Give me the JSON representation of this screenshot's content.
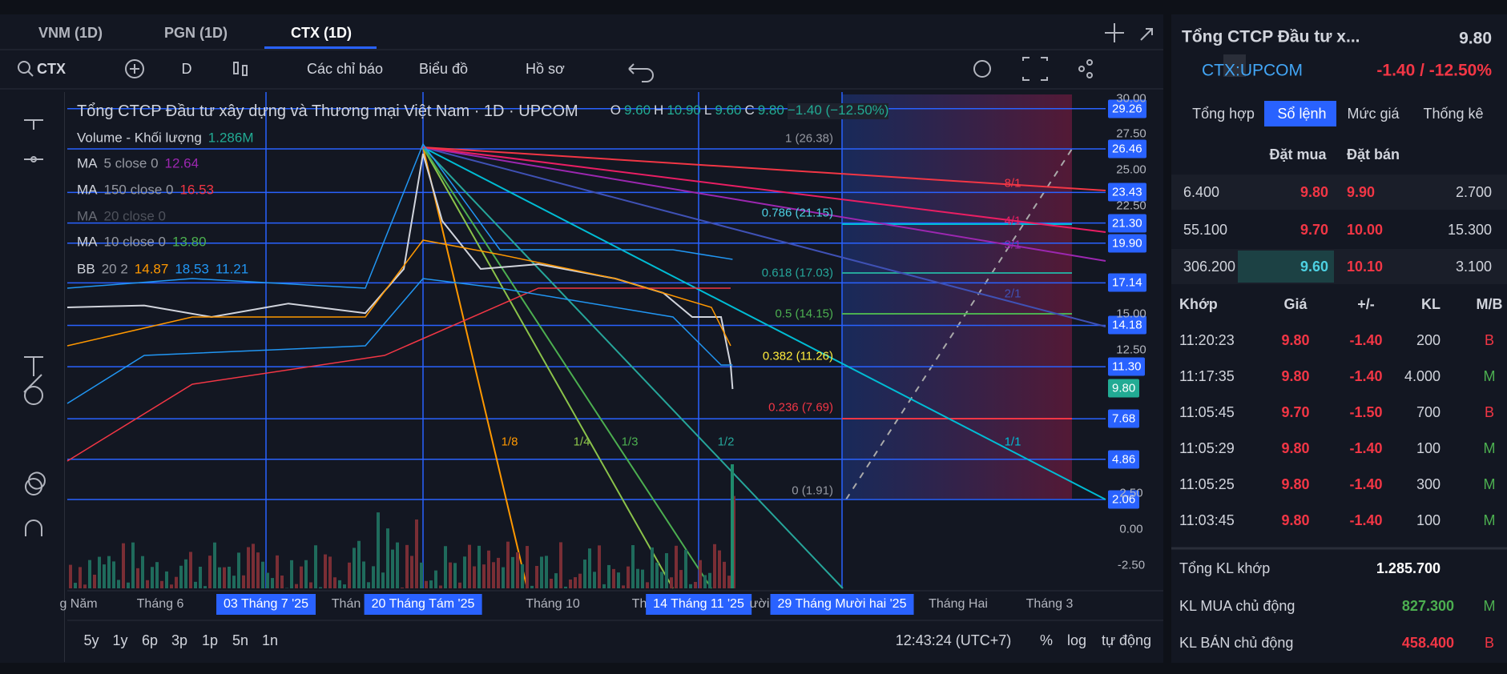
{
  "tabs": [
    "VNM (1D)",
    "PGN (1D)",
    "CTX (1D)"
  ],
  "toolbar": {
    "symbol": "CTX",
    "interval": "D",
    "indicators": "Các chỉ báo",
    "chart_menu": "Biểu đồ",
    "profile": "Hồ sơ"
  },
  "chart": {
    "title": "Tổng CTCP Đầu tư xây dựng và Thương mại Việt Nam · 1D · UPCOM",
    "ohlc": [
      {
        "label": "O",
        "value": "9.60"
      },
      {
        "label": "H",
        "value": "10.90"
      },
      {
        "label": "L",
        "value": "9.60"
      },
      {
        "label": "C",
        "value": "9.80"
      }
    ],
    "change": "−1.40 (−12.50%)",
    "legend": [
      {
        "name": "Volume - Khối lượng",
        "params": "",
        "values": [
          "1.286M"
        ]
      },
      {
        "name": "MA",
        "params": "5 close 0",
        "values": [
          "12.64"
        ]
      },
      {
        "name": "MA",
        "params": "150 close 0",
        "values": [
          "16.53"
        ]
      },
      {
        "name": "MA",
        "params": "20 close 0",
        "values": []
      },
      {
        "name": "MA",
        "params": "10 close 0",
        "values": [
          "13.80"
        ]
      },
      {
        "name": "BB",
        "params": "20 2",
        "values": [
          "14.87",
          "18.53",
          "11.21"
        ]
      }
    ],
    "fib_labels": [
      "1 (26.38)",
      "0.786 (21.15)",
      "0.618 (17.03)",
      "0.5 (14.15)",
      "0.382 (11.26)",
      "0.236 (7.69)",
      "0 (1.91)"
    ],
    "fan_labels": [
      "1/8",
      "1/4",
      "1/3",
      "1/2",
      "1/1",
      "2/1",
      "3/1",
      "4/1",
      "8/1"
    ],
    "price_axis": [
      "30.00",
      "27.50",
      "25.00",
      "22.50",
      "15.00",
      "12.50",
      "2.50",
      "0.00",
      "-2.50"
    ],
    "price_badges": [
      "29.26",
      "26.46",
      "23.43",
      "21.30",
      "19.90",
      "17.14",
      "14.18",
      "11.30",
      "7.68",
      "4.86",
      "2.06"
    ],
    "last_price": "9.80",
    "time_axis": [
      "g Năm",
      "Tháng 6",
      "03 Tháng 7 '25",
      "Thán",
      "20 Tháng Tám '25",
      "Tháng 10",
      "Th",
      "14 Tháng 11 '25",
      "ười",
      "29 Tháng Mười hai '25",
      "Tháng Hai",
      "Tháng 3"
    ]
  },
  "bottom": {
    "ranges": [
      "5y",
      "1y",
      "6p",
      "3p",
      "1p",
      "5n",
      "1n"
    ],
    "clock": "12:43:24 (UTC+7)",
    "percent": "%",
    "log": "log",
    "auto": "tự động"
  },
  "panel": {
    "name": "Tổng CTCP Đầu tư x...",
    "price": "9.80",
    "ticker": "CTX:UPCOM",
    "change": "-1.40 / -12.50%",
    "tabs": [
      "Tổng hợp",
      "Sổ lệnh",
      "Mức giá",
      "Thống kê"
    ],
    "book_header": [
      "Đặt mua",
      "Đặt bán"
    ],
    "book": [
      [
        "6.400",
        "9.80",
        "9.90",
        "2.700"
      ],
      [
        "55.100",
        "9.70",
        "10.00",
        "15.300"
      ],
      [
        "306.200",
        "9.60",
        "10.10",
        "3.100"
      ]
    ],
    "trades_header": [
      "Khớp",
      "Giá",
      "+/-",
      "KL",
      "M/B"
    ],
    "trades": [
      [
        "11:20:23",
        "9.80",
        "-1.40",
        "200",
        "B"
      ],
      [
        "11:17:35",
        "9.80",
        "-1.40",
        "4.000",
        "M"
      ],
      [
        "11:05:45",
        "9.70",
        "-1.50",
        "700",
        "B"
      ],
      [
        "11:05:29",
        "9.80",
        "-1.40",
        "100",
        "M"
      ],
      [
        "11:05:25",
        "9.80",
        "-1.40",
        "300",
        "M"
      ],
      [
        "11:03:45",
        "9.80",
        "-1.40",
        "100",
        "M"
      ]
    ],
    "summary": [
      [
        "Tổng KL khớp",
        "1.285.700"
      ],
      [
        "KL MUA chủ động",
        "827.300",
        "M"
      ],
      [
        "KL BÁN chủ động",
        "458.400",
        "B"
      ]
    ]
  }
}
